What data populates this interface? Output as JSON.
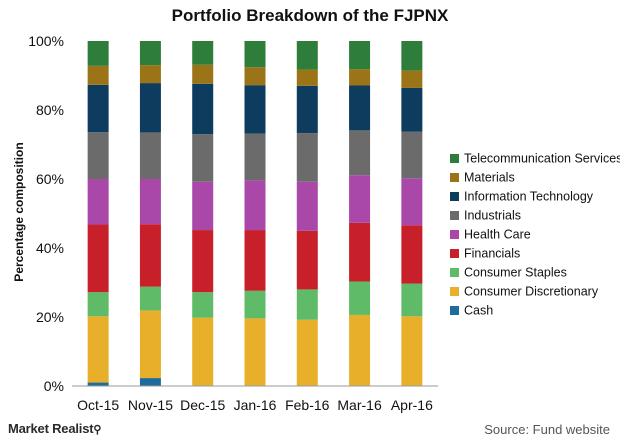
{
  "chart_data": {
    "type": "bar",
    "stacked": true,
    "title": "Portfolio Breakdown of the FJPNX",
    "ylabel": "Percentage composition",
    "xlabel": "",
    "ylim": [
      0,
      100
    ],
    "yticks": [
      0,
      20,
      40,
      60,
      80,
      100
    ],
    "ytick_labels": [
      "0%",
      "20%",
      "40%",
      "60%",
      "80%",
      "100%"
    ],
    "categories": [
      "Oct-15",
      "Nov-15",
      "Dec-15",
      "Jan-16",
      "Feb-16",
      "Mar-16",
      "Apr-16"
    ],
    "legend_position": "right",
    "series": [
      {
        "name": "Cash",
        "color": "#1f6b9e",
        "values": [
          1.0,
          2.3,
          0,
          0,
          0,
          0,
          0
        ]
      },
      {
        "name": "Consumer Discretionary",
        "color": "#e8b02a",
        "values": [
          19.2,
          19.6,
          19.8,
          19.6,
          19.2,
          20.6,
          20.2
        ]
      },
      {
        "name": "Consumer Staples",
        "color": "#5fbb67",
        "values": [
          7.0,
          6.9,
          7.4,
          8.0,
          8.8,
          9.7,
          9.5
        ]
      },
      {
        "name": "Financials",
        "color": "#c8202a",
        "values": [
          19.6,
          18.1,
          18.0,
          17.6,
          17.0,
          17.0,
          16.9
        ]
      },
      {
        "name": "Health Care",
        "color": "#a948a8",
        "values": [
          13.2,
          13.1,
          14.0,
          14.4,
          14.2,
          13.8,
          13.6
        ]
      },
      {
        "name": "Industrials",
        "color": "#6b6b6b",
        "values": [
          13.6,
          13.5,
          13.8,
          13.6,
          14.1,
          13.0,
          13.5
        ]
      },
      {
        "name": "Information Technology",
        "color": "#0e3c5e",
        "values": [
          13.7,
          14.3,
          14.6,
          14.0,
          13.7,
          13.0,
          12.7
        ]
      },
      {
        "name": "Materials",
        "color": "#9a7417",
        "values": [
          5.5,
          5.2,
          5.5,
          5.2,
          4.7,
          4.7,
          5.0
        ]
      },
      {
        "name": "Telecommunication Services",
        "color": "#2f7d3a",
        "values": [
          7.2,
          7.0,
          6.9,
          7.6,
          8.3,
          8.2,
          8.6
        ]
      }
    ]
  },
  "footer": {
    "brand": "Market Realist",
    "brand_icon": "magnifier-icon",
    "source": "Source: Fund website"
  }
}
